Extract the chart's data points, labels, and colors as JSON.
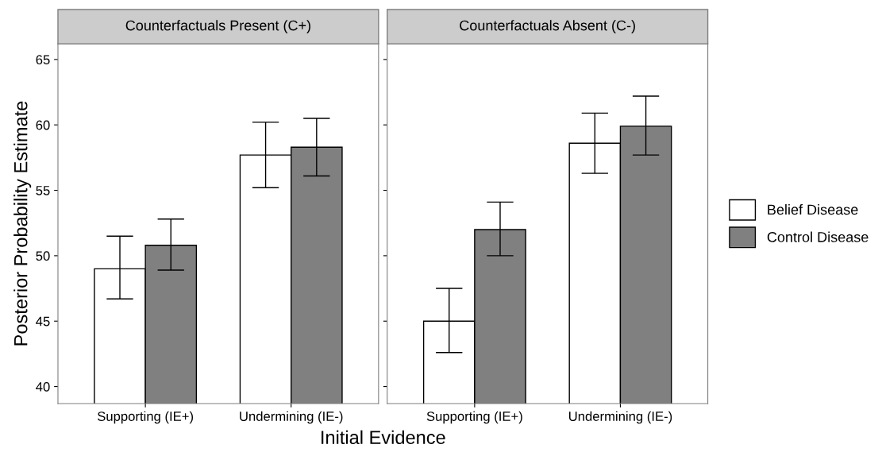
{
  "chart_data": [
    {
      "type": "bar",
      "title": "Counterfactuals Present (C+)",
      "xlabel": "Initial Evidence",
      "ylabel": "Posterior Probability Estimate",
      "categories": [
        "Supporting (IE+)",
        "Undermining (IE-)"
      ],
      "series": [
        {
          "name": "Belief Disease",
          "color": "#ffffff",
          "values": [
            49.0,
            57.7
          ],
          "errors": [
            [
              46.7,
              51.5
            ],
            [
              55.2,
              60.2
            ]
          ]
        },
        {
          "name": "Control Disease",
          "color": "#808080",
          "values": [
            50.8,
            58.3
          ],
          "errors": [
            [
              48.9,
              52.8
            ],
            [
              56.1,
              60.5
            ]
          ]
        }
      ],
      "ylim": [
        38.7,
        66.2
      ],
      "yticks": [
        40,
        45,
        50,
        55,
        60,
        65
      ],
      "grid": false,
      "legend": "right"
    },
    {
      "type": "bar",
      "title": "Counterfactuals Absent (C-)",
      "categories": [
        "Supporting (IE+)",
        "Undermining (IE-)"
      ],
      "series": [
        {
          "color": "#ffffff",
          "values": [
            45.0,
            58.6
          ],
          "errors": [
            [
              42.6,
              47.5
            ],
            [
              56.3,
              60.9
            ]
          ]
        },
        {
          "color": "#808080",
          "values": [
            52.0,
            59.9
          ],
          "errors": [
            [
              50.0,
              54.1
            ],
            [
              57.7,
              62.2
            ]
          ]
        }
      ],
      "ylim": [
        38.7,
        66.2
      ],
      "yticks": [
        40,
        45,
        50,
        55,
        60,
        65
      ],
      "tick_labels": "x",
      "grid": false
    }
  ]
}
